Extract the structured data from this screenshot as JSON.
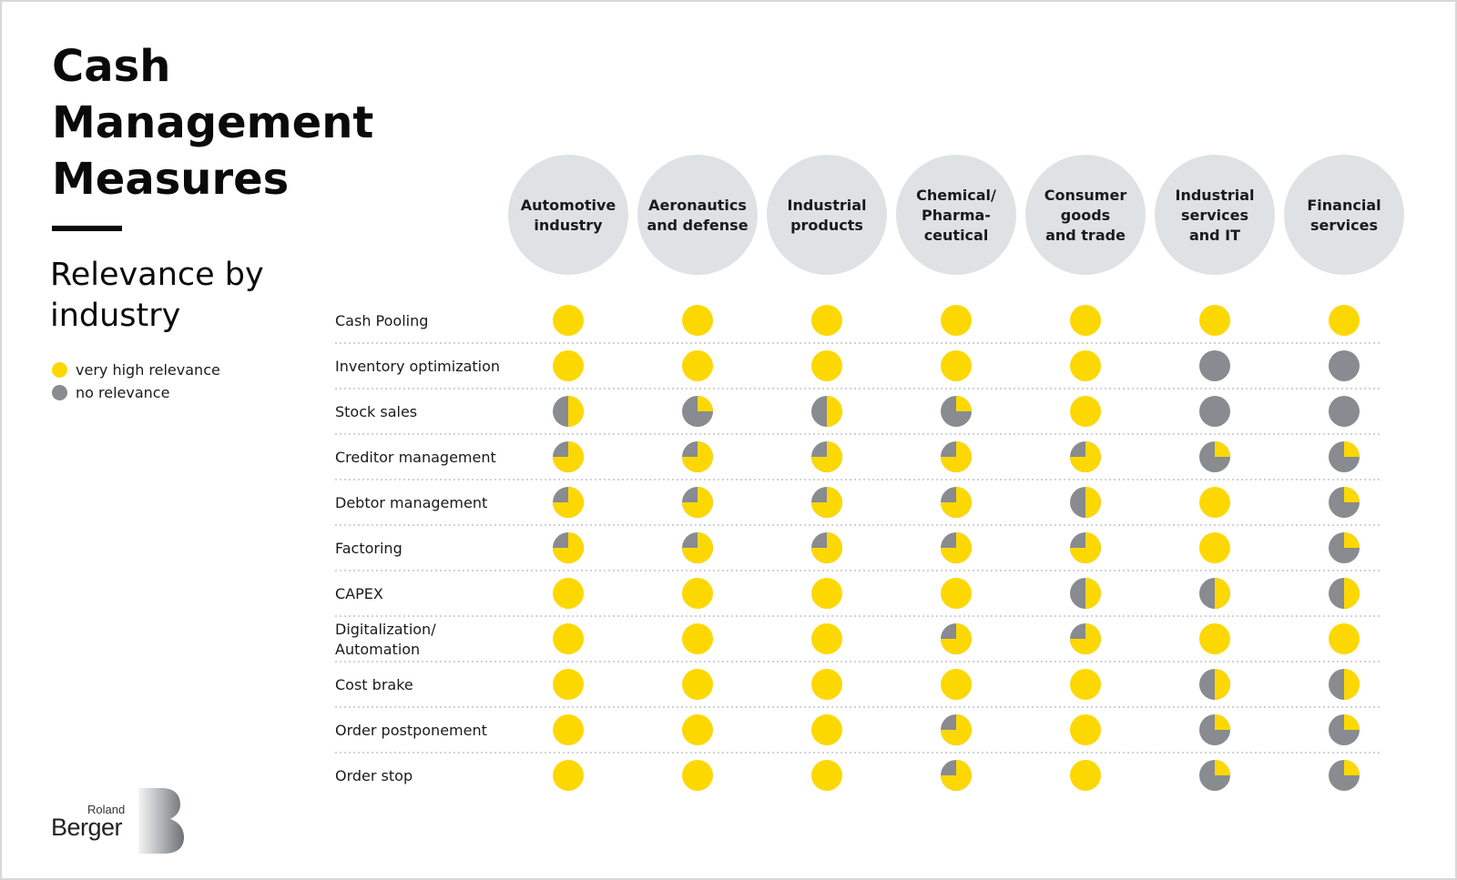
{
  "header": {
    "title_lines": [
      "Cash",
      "Management",
      "Measures"
    ],
    "subtitle_lines": [
      "Relevance by",
      "industry"
    ]
  },
  "legend": [
    {
      "label": "very high relevance",
      "color": "#fdd800"
    },
    {
      "label": "no relevance",
      "color": "#888b8f"
    }
  ],
  "colors": {
    "high": "#fdd800",
    "none": "#888b8f",
    "header_circle": "#dfe2e4",
    "divider": "#bfc3c6"
  },
  "chart_data": {
    "type": "table",
    "value_scale": "fraction of circle filled yellow (1 = very high relevance, 0 = no relevance)",
    "columns": [
      [
        "Automotive",
        "industry"
      ],
      [
        "Aeronautics",
        "and defense"
      ],
      [
        "Industrial",
        "products"
      ],
      [
        "Chemical/",
        "Pharma-",
        "ceutical"
      ],
      [
        "Consumer",
        "goods",
        "and trade"
      ],
      [
        "Industrial",
        "services",
        "and IT"
      ],
      [
        "Financial",
        "services"
      ]
    ],
    "rows": [
      {
        "label": [
          "Cash Pooling"
        ],
        "values": [
          1,
          1,
          1,
          1,
          1,
          1,
          1
        ]
      },
      {
        "label": [
          "Inventory optimization"
        ],
        "values": [
          1,
          1,
          1,
          1,
          1,
          0,
          0
        ]
      },
      {
        "label": [
          "Stock sales"
        ],
        "values": [
          0.5,
          0.25,
          0.5,
          0.25,
          1,
          0,
          0
        ]
      },
      {
        "label": [
          "Creditor management"
        ],
        "values": [
          0.75,
          0.75,
          0.75,
          0.75,
          0.75,
          0.25,
          0.25
        ]
      },
      {
        "label": [
          "Debtor management"
        ],
        "values": [
          0.75,
          0.75,
          0.75,
          0.75,
          0.5,
          1,
          0.25
        ]
      },
      {
        "label": [
          "Factoring"
        ],
        "values": [
          0.75,
          0.75,
          0.75,
          0.75,
          0.75,
          1,
          0.25
        ]
      },
      {
        "label": [
          "CAPEX"
        ],
        "values": [
          1,
          1,
          1,
          1,
          0.5,
          0.5,
          0.5
        ]
      },
      {
        "label": [
          "Digitalization/",
          "Automation"
        ],
        "values": [
          1,
          1,
          1,
          0.75,
          0.75,
          1,
          1
        ]
      },
      {
        "label": [
          "Cost brake"
        ],
        "values": [
          1,
          1,
          1,
          1,
          1,
          0.5,
          0.5
        ]
      },
      {
        "label": [
          "Order postponement"
        ],
        "values": [
          1,
          1,
          1,
          0.75,
          1,
          0.25,
          0.25
        ]
      },
      {
        "label": [
          "Order stop"
        ],
        "values": [
          1,
          1,
          1,
          0.75,
          1,
          0.25,
          0.25
        ]
      }
    ]
  },
  "logo": {
    "line1": "Roland",
    "line2": "Berger"
  }
}
